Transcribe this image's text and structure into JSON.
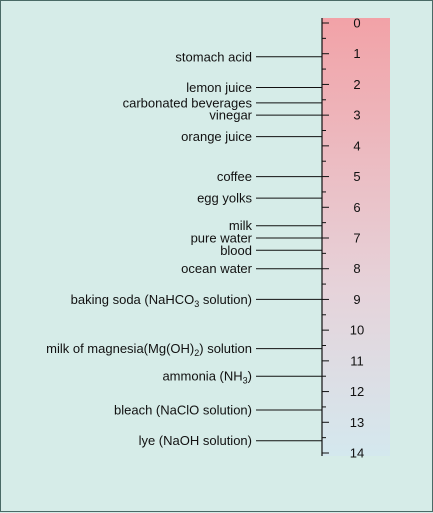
{
  "colors": {
    "background": "#d6ece8",
    "acid_top": "#f2a2a7",
    "mid": "#e6d3da",
    "base_bottom": "#d4e8ee",
    "ink": "#111111"
  },
  "ph_scale": {
    "min": 0,
    "max": 14,
    "ticks": [
      "0",
      "1",
      "2",
      "3",
      "4",
      "5",
      "6",
      "7",
      "8",
      "9",
      "10",
      "11",
      "12",
      "13",
      "14"
    ]
  },
  "substances": [
    {
      "name": "stomach acid",
      "ph": 1.1
    },
    {
      "name": "lemon juice",
      "ph": 2.1
    },
    {
      "name": "carbonated beverages",
      "ph": 2.6
    },
    {
      "name": "vinegar",
      "ph": 3.0
    },
    {
      "name": "orange juice",
      "ph": 3.7
    },
    {
      "name": "coffee",
      "ph": 5.0
    },
    {
      "name": "egg yolks",
      "ph": 5.7
    },
    {
      "name": "milk",
      "ph": 6.6
    },
    {
      "name": "pure water",
      "ph": 7.0
    },
    {
      "name": "blood",
      "ph": 7.4
    },
    {
      "name": "ocean water",
      "ph": 8.0
    },
    {
      "name": "baking soda (NaHCO",
      "sub": "3",
      "post": " solution)",
      "ph": 9.0
    },
    {
      "name": "milk of magnesia(Mg(OH)",
      "sub": "2",
      "post": ") solution",
      "ph": 10.6
    },
    {
      "name": "ammonia (NH",
      "sub": "3",
      "post": ")",
      "ph": 11.5
    },
    {
      "name": "bleach (NaClO solution)",
      "ph": 12.6
    },
    {
      "name": "lye (NaOH solution)",
      "ph": 13.6
    }
  ]
}
